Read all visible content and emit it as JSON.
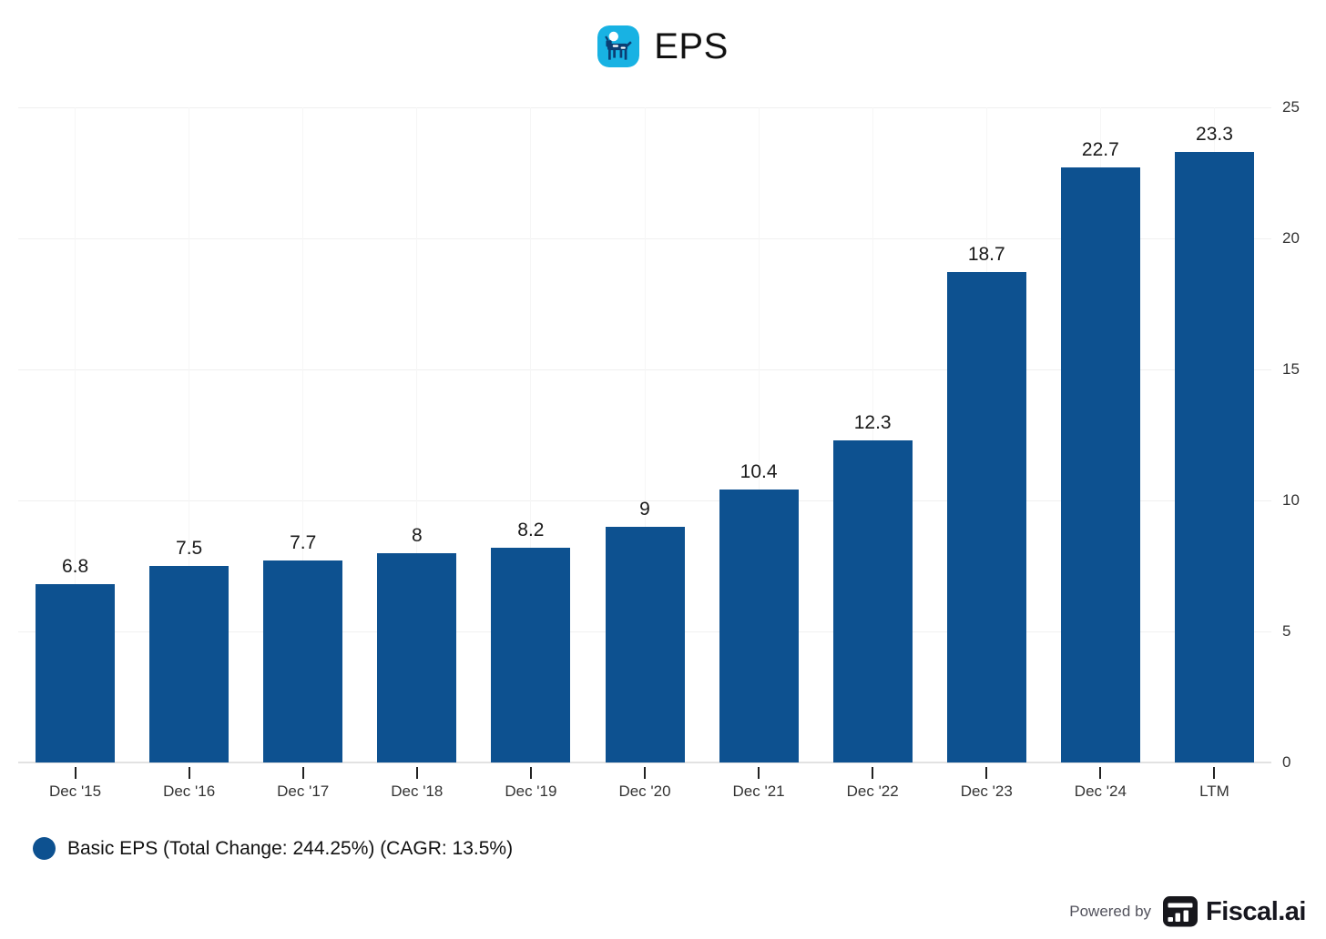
{
  "title": {
    "text": "EPS",
    "icon": "elk-logo-icon",
    "icon_bg_color": "#18b2e3"
  },
  "chart_data": {
    "type": "bar",
    "title": "EPS",
    "categories": [
      "Dec '15",
      "Dec '16",
      "Dec '17",
      "Dec '18",
      "Dec '19",
      "Dec '20",
      "Dec '21",
      "Dec '22",
      "Dec '23",
      "Dec '24",
      "LTM"
    ],
    "series": [
      {
        "name": "Basic EPS (Total Change: 244.25%) (CAGR: 13.5%)",
        "values": [
          6.8,
          7.5,
          7.7,
          8,
          8.2,
          9,
          10.4,
          12.3,
          18.7,
          22.7,
          23.3
        ],
        "color": "#0d5190"
      }
    ],
    "data_labels": [
      "6.8",
      "7.5",
      "7.7",
      "8",
      "8.2",
      "9",
      "10.4",
      "12.3",
      "18.7",
      "22.7",
      "23.3"
    ],
    "xlabel": "",
    "ylabel": "",
    "ylim": [
      0,
      25
    ],
    "yticks": [
      0,
      5,
      10,
      15,
      20,
      25
    ],
    "yaxis_side": "right",
    "grid": true,
    "legend_position": "bottom-left"
  },
  "legend": {
    "label": "Basic EPS (Total Change: 244.25%) (CAGR: 13.5%)",
    "marker_color": "#0d5190"
  },
  "footer": {
    "powered_by": "Powered by",
    "brand": "Fiscal.ai"
  }
}
